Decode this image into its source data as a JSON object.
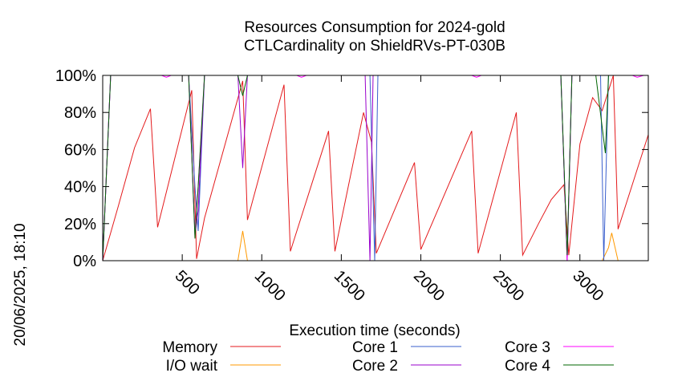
{
  "side_label": "20/06/2025, 18:10",
  "chart_data": {
    "type": "line",
    "title": [
      "Resources Consumption for 2024-gold",
      "CTLCardinality on ShieldRVs-PT-030B"
    ],
    "xlabel": "Execution time (seconds)",
    "ylabel": "",
    "xlim": [
      0,
      3430
    ],
    "ylim": [
      0,
      100
    ],
    "x_ticks": [
      500,
      1000,
      1500,
      2000,
      2500,
      3000
    ],
    "x_tick_labels": [
      "500",
      "1000",
      "1500",
      "2000",
      "2500",
      "3000"
    ],
    "y_ticks": [
      0,
      20,
      40,
      60,
      80,
      100
    ],
    "y_tick_labels": [
      "0%",
      "20%",
      "40%",
      "60%",
      "80%",
      "100%"
    ],
    "grid": false,
    "legend_position": "bottom",
    "series": [
      {
        "name": "Memory",
        "color": "#e41a1c",
        "points": [
          [
            0,
            0
          ],
          [
            100,
            30
          ],
          [
            200,
            61
          ],
          [
            300,
            82
          ],
          [
            345,
            18
          ],
          [
            560,
            92
          ],
          [
            590,
            1
          ],
          [
            640,
            23
          ],
          [
            880,
            97
          ],
          [
            910,
            22
          ],
          [
            1140,
            95
          ],
          [
            1180,
            5
          ],
          [
            1420,
            70
          ],
          [
            1460,
            5
          ],
          [
            1640,
            80
          ],
          [
            1690,
            64
          ],
          [
            1720,
            4
          ],
          [
            1960,
            53
          ],
          [
            2000,
            6
          ],
          [
            2320,
            70
          ],
          [
            2360,
            4
          ],
          [
            2600,
            80
          ],
          [
            2640,
            3
          ],
          [
            2740,
            20
          ],
          [
            2820,
            33
          ],
          [
            2900,
            41
          ],
          [
            2930,
            3
          ],
          [
            3000,
            63
          ],
          [
            3080,
            88
          ],
          [
            3140,
            81
          ],
          [
            3210,
            100
          ],
          [
            3240,
            17
          ],
          [
            3430,
            68
          ]
        ]
      },
      {
        "name": "I/O wait",
        "color": "#ff9900",
        "points": [
          [
            0,
            0
          ],
          [
            570,
            0
          ],
          [
            600,
            0
          ],
          [
            850,
            0
          ],
          [
            880,
            16
          ],
          [
            910,
            0
          ],
          [
            2900,
            0
          ],
          [
            2930,
            0
          ],
          [
            3140,
            0
          ],
          [
            3180,
            7
          ],
          [
            3200,
            15
          ],
          [
            3240,
            0
          ],
          [
            3430,
            0
          ]
        ]
      },
      {
        "name": "Core 1",
        "color": "#3a5fcd",
        "points": [
          [
            0,
            0
          ],
          [
            50,
            100
          ],
          [
            540,
            100
          ],
          [
            580,
            40
          ],
          [
            600,
            16
          ],
          [
            640,
            100
          ],
          [
            1680,
            100
          ],
          [
            1710,
            0
          ],
          [
            1730,
            100
          ],
          [
            2880,
            100
          ],
          [
            2920,
            0
          ],
          [
            2950,
            100
          ],
          [
            3130,
            100
          ],
          [
            3150,
            0
          ],
          [
            3180,
            100
          ],
          [
            3430,
            100
          ]
        ]
      },
      {
        "name": "Core 2",
        "color": "#9900cc",
        "points": [
          [
            0,
            0
          ],
          [
            50,
            100
          ],
          [
            540,
            100
          ],
          [
            580,
            14
          ],
          [
            600,
            27
          ],
          [
            640,
            100
          ],
          [
            850,
            100
          ],
          [
            880,
            50
          ],
          [
            910,
            100
          ],
          [
            1650,
            100
          ],
          [
            1680,
            0
          ],
          [
            1700,
            100
          ],
          [
            2880,
            100
          ],
          [
            2920,
            0
          ],
          [
            2950,
            100
          ],
          [
            3430,
            100
          ]
        ]
      },
      {
        "name": "Core 3",
        "color": "#ff00ff",
        "points": [
          [
            0,
            0
          ],
          [
            50,
            100
          ],
          [
            370,
            100
          ],
          [
            400,
            99
          ],
          [
            430,
            100
          ],
          [
            540,
            100
          ],
          [
            580,
            14
          ],
          [
            600,
            40
          ],
          [
            640,
            100
          ],
          [
            900,
            100
          ],
          [
            1220,
            100
          ],
          [
            1250,
            99
          ],
          [
            1280,
            100
          ],
          [
            2320,
            100
          ],
          [
            2350,
            99
          ],
          [
            2380,
            100
          ],
          [
            2880,
            100
          ],
          [
            2920,
            0
          ],
          [
            2950,
            100
          ],
          [
            3330,
            100
          ],
          [
            3360,
            99
          ],
          [
            3400,
            100
          ],
          [
            3430,
            100
          ]
        ]
      },
      {
        "name": "Core 4",
        "color": "#006400",
        "points": [
          [
            0,
            0
          ],
          [
            50,
            100
          ],
          [
            540,
            100
          ],
          [
            580,
            12
          ],
          [
            600,
            40
          ],
          [
            640,
            100
          ],
          [
            850,
            100
          ],
          [
            880,
            89
          ],
          [
            910,
            100
          ],
          [
            2880,
            100
          ],
          [
            2920,
            3
          ],
          [
            2950,
            100
          ],
          [
            3100,
            100
          ],
          [
            3160,
            58
          ],
          [
            3180,
            100
          ],
          [
            3430,
            100
          ]
        ]
      }
    ]
  }
}
